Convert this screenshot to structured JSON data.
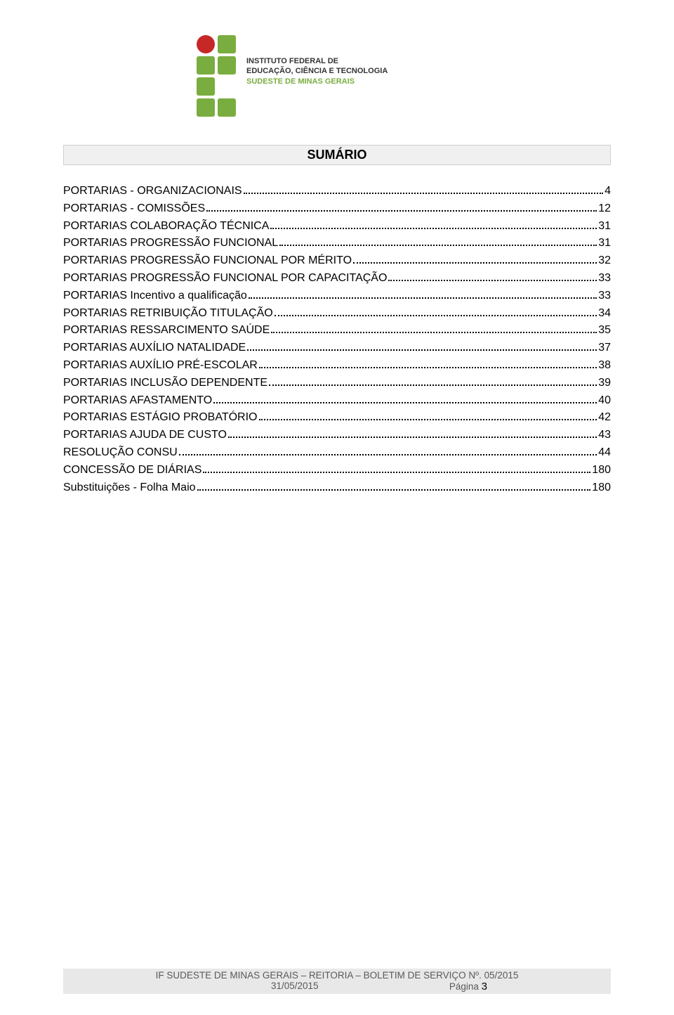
{
  "logo": {
    "squares": [
      {
        "type": "circle",
        "color": "#c62828"
      },
      {
        "type": "square",
        "color": "#7aad3f"
      },
      {
        "type": "square",
        "color": "#7aad3f"
      },
      {
        "type": "square",
        "color": "#7aad3f"
      },
      {
        "type": "square",
        "color": "#7aad3f"
      },
      {
        "type": "empty",
        "color": "transparent"
      },
      {
        "type": "square",
        "color": "#7aad3f"
      },
      {
        "type": "square",
        "color": "#7aad3f"
      }
    ],
    "text_line1": "INSTITUTO FEDERAL DE",
    "text_line2": "EDUCAÇÃO, CIÊNCIA E TECNOLOGIA",
    "text_line3": "SUDESTE DE MINAS GERAIS"
  },
  "title": "SUMÁRIO",
  "toc": [
    {
      "label": "PORTARIAS - ORGANIZACIONAIS",
      "page": "4"
    },
    {
      "label": "PORTARIAS - COMISSÕES",
      "page": "12"
    },
    {
      "label": "PORTARIAS COLABORAÇÃO TÉCNICA",
      "page": "31"
    },
    {
      "label": "PORTARIAS PROGRESSÃO FUNCIONAL",
      "page": "31"
    },
    {
      "label": "PORTARIAS PROGRESSÃO FUNCIONAL POR MÉRITO",
      "page": "32"
    },
    {
      "label": "PORTARIAS PROGRESSÃO FUNCIONAL POR CAPACITAÇÃO",
      "page": "33"
    },
    {
      "label": "PORTARIAS Incentivo a qualificação",
      "page": "33"
    },
    {
      "label": "PORTARIAS RETRIBUIÇÃO TITULAÇÃO",
      "page": "34"
    },
    {
      "label": "PORTARIAS RESSARCIMENTO SAÚDE",
      "page": "35"
    },
    {
      "label": "PORTARIAS AUXÍLIO NATALIDADE",
      "page": "37"
    },
    {
      "label": "PORTARIAS AUXÍLIO PRÉ-ESCOLAR",
      "page": "38"
    },
    {
      "label": "PORTARIAS INCLUSÃO DEPENDENTE",
      "page": "39"
    },
    {
      "label": "PORTARIAS AFASTAMENTO",
      "page": "40"
    },
    {
      "label": "PORTARIAS ESTÁGIO PROBATÓRIO",
      "page": "42"
    },
    {
      "label": "PORTARIAS AJUDA DE CUSTO",
      "page": "43"
    },
    {
      "label": "RESOLUÇÃO CONSU",
      "page": "44"
    },
    {
      "label": "CONCESSÃO DE DIÁRIAS",
      "page": "180"
    },
    {
      "label": "Substituições - Folha Maio",
      "page": "180"
    }
  ],
  "footer": {
    "line1": "IF SUDESTE DE MINAS GERAIS – REITORIA – BOLETIM DE SERVIÇO Nº. 05/2015",
    "date": "31/05/2015",
    "page_label": "Página ",
    "page_num": "3"
  },
  "colors": {
    "logo_green": "#7aad3f",
    "logo_red": "#c62828",
    "title_bg": "#f0f0f0",
    "footer_bg": "#e8e8e8",
    "footer_text": "#595959"
  }
}
